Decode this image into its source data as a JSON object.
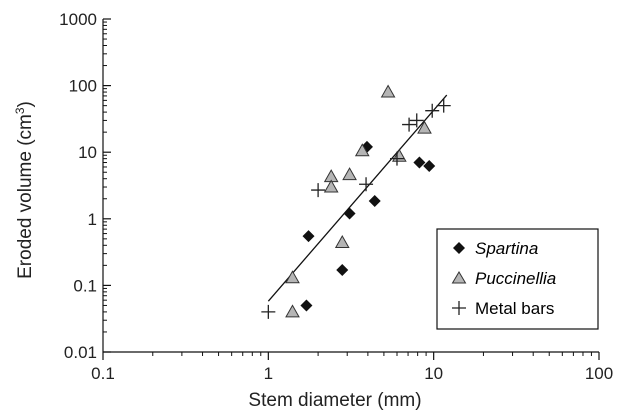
{
  "chart_data": {
    "type": "scatter",
    "xlabel": "Stem diameter (mm)",
    "ylabel_main": "Eroded volume (cm",
    "ylabel_sup": "3",
    "ylabel_close": ")",
    "x_scale": "log",
    "y_scale": "log",
    "xlim": [
      0.1,
      100
    ],
    "ylim": [
      0.01,
      1000
    ],
    "x_ticks": [
      {
        "value": 0.1,
        "label": "0.1"
      },
      {
        "value": 1,
        "label": "1"
      },
      {
        "value": 10,
        "label": "10"
      },
      {
        "value": 100,
        "label": "100"
      }
    ],
    "y_ticks": [
      {
        "value": 0.01,
        "label": "0.01"
      },
      {
        "value": 0.1,
        "label": "0.1"
      },
      {
        "value": 1,
        "label": "1"
      },
      {
        "value": 10,
        "label": "10"
      },
      {
        "value": 100,
        "label": "100"
      },
      {
        "value": 1000,
        "label": "1000"
      }
    ],
    "grid": false,
    "legend_position": "bottom-right",
    "series": [
      {
        "name": "Spartina",
        "marker": "diamond",
        "color": "#111111",
        "points": [
          {
            "x": 1.75,
            "y": 0.55
          },
          {
            "x": 1.7,
            "y": 0.05
          },
          {
            "x": 2.8,
            "y": 0.17
          },
          {
            "x": 3.1,
            "y": 1.2
          },
          {
            "x": 3.95,
            "y": 12
          },
          {
            "x": 4.4,
            "y": 1.85
          },
          {
            "x": 8.2,
            "y": 7
          },
          {
            "x": 9.4,
            "y": 6.2
          }
        ]
      },
      {
        "name": "Puccinellia",
        "marker": "triangle",
        "color": "#b5b5b5",
        "points": [
          {
            "x": 1.4,
            "y": 0.13
          },
          {
            "x": 1.4,
            "y": 0.04
          },
          {
            "x": 2.4,
            "y": 4.3
          },
          {
            "x": 2.4,
            "y": 3
          },
          {
            "x": 2.8,
            "y": 0.44
          },
          {
            "x": 3.1,
            "y": 4.6
          },
          {
            "x": 3.7,
            "y": 10.5
          },
          {
            "x": 5.3,
            "y": 80
          },
          {
            "x": 6.2,
            "y": 8.7
          },
          {
            "x": 8.8,
            "y": 23
          }
        ]
      },
      {
        "name": "Metal bars",
        "marker": "plus",
        "color": "#222222",
        "points": [
          {
            "x": 1,
            "y": 0.04
          },
          {
            "x": 2,
            "y": 2.7
          },
          {
            "x": 3.9,
            "y": 3.3
          },
          {
            "x": 6,
            "y": 8
          },
          {
            "x": 7.1,
            "y": 26
          },
          {
            "x": 7.9,
            "y": 30
          },
          {
            "x": 9.8,
            "y": 42
          },
          {
            "x": 11.5,
            "y": 50
          }
        ]
      }
    ],
    "trendline": {
      "from": {
        "x": 1,
        "y": 0.058
      },
      "to": {
        "x": 12,
        "y": 72
      }
    }
  }
}
